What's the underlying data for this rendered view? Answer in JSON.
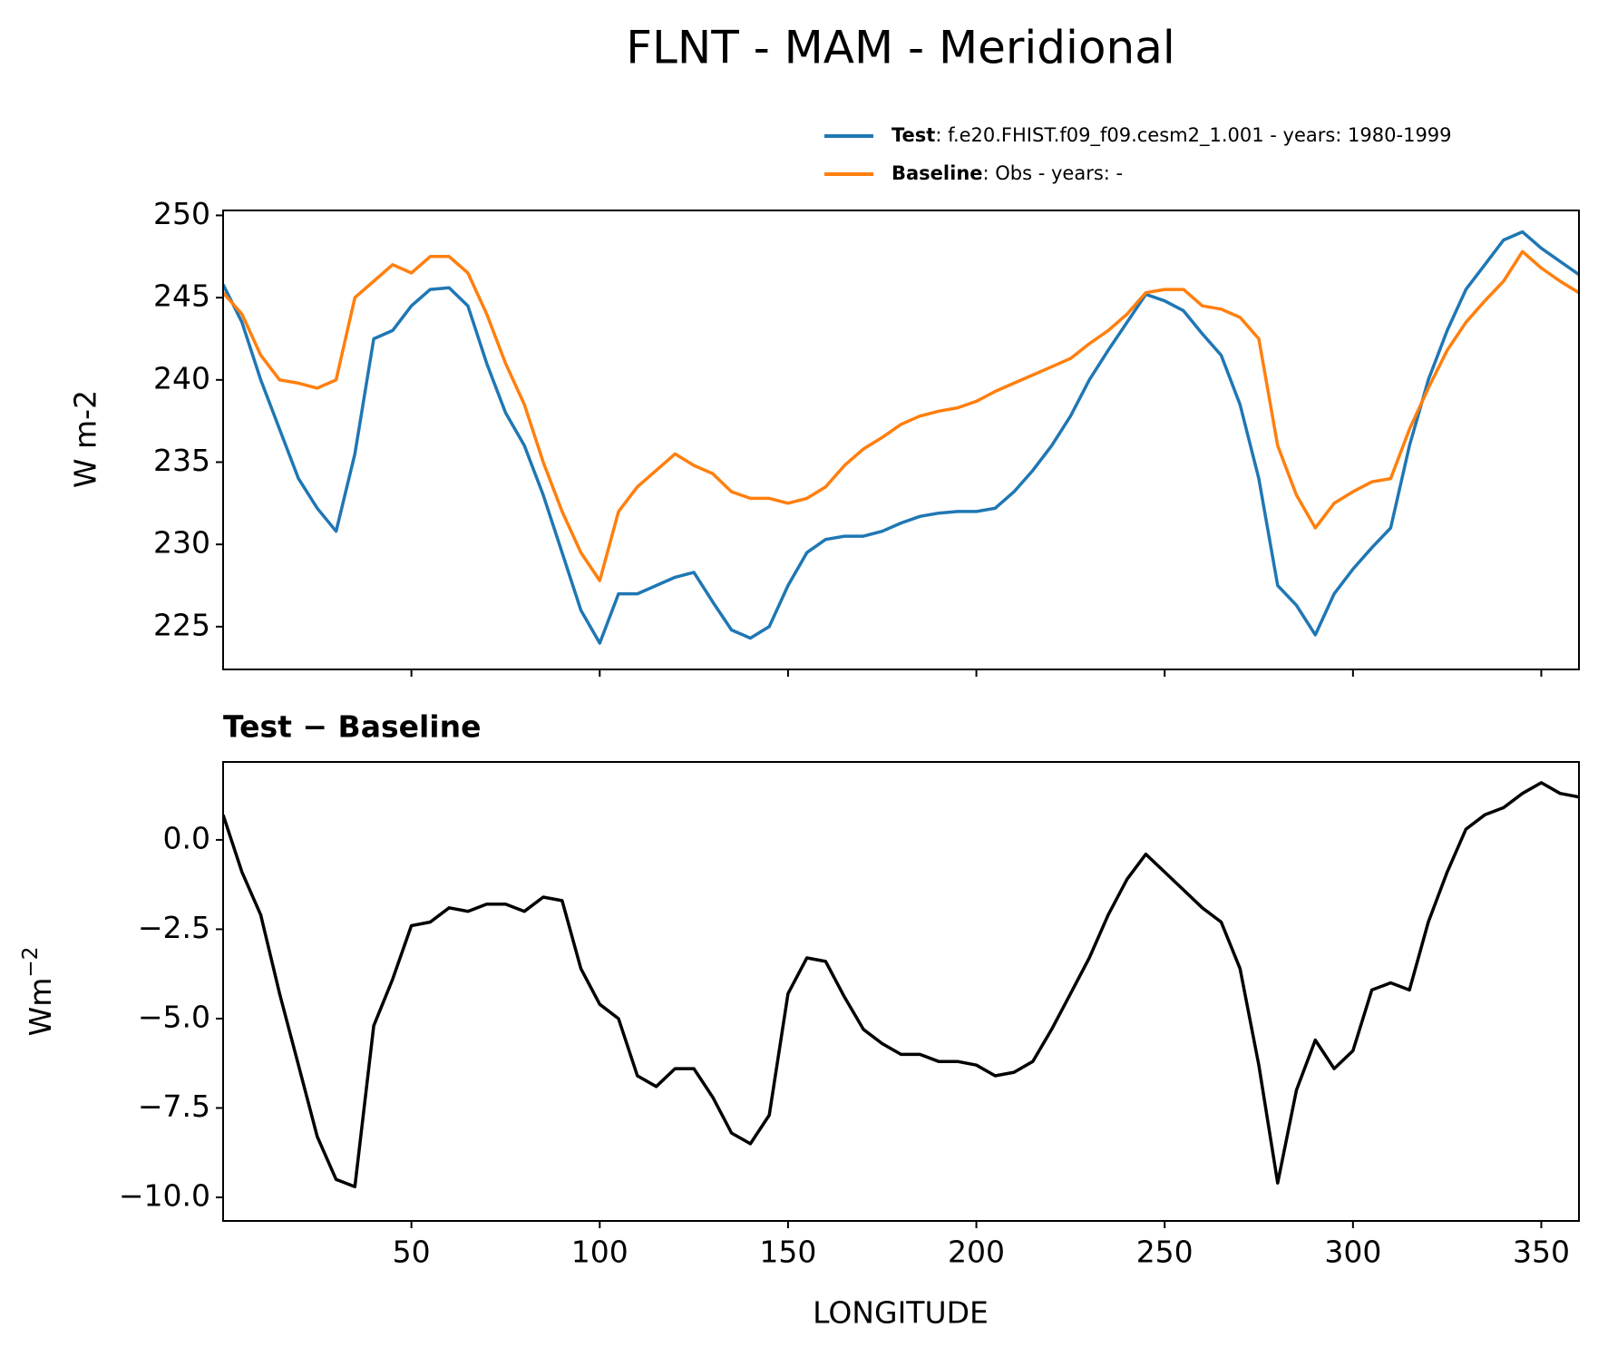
{
  "chart_data": [
    {
      "type": "line",
      "title": "FLNT - MAM - Meridional",
      "ylabel": "W m-2",
      "x": [
        0,
        5,
        10,
        15,
        20,
        25,
        30,
        35,
        40,
        45,
        50,
        55,
        60,
        65,
        70,
        75,
        80,
        85,
        90,
        95,
        100,
        105,
        110,
        115,
        120,
        125,
        130,
        135,
        140,
        145,
        150,
        155,
        160,
        165,
        170,
        175,
        180,
        185,
        190,
        195,
        200,
        205,
        210,
        215,
        220,
        225,
        230,
        235,
        240,
        245,
        250,
        255,
        260,
        265,
        270,
        275,
        280,
        285,
        290,
        295,
        300,
        305,
        310,
        315,
        320,
        325,
        330,
        335,
        340,
        345,
        350,
        355,
        360
      ],
      "series": [
        {
          "name": "Test",
          "description": ": f.e20.FHIST.f09_f09.cesm2_1.001 - years: 1980-1999",
          "color": "#1f77b4",
          "values": [
            245.8,
            243.5,
            240,
            237,
            234,
            232.2,
            230.8,
            235.5,
            242.5,
            243,
            244.5,
            245.5,
            245.6,
            244.5,
            241,
            238,
            236,
            233,
            229.5,
            226,
            224,
            227,
            227,
            227.5,
            228,
            228.3,
            226.5,
            224.8,
            224.3,
            225,
            227.5,
            229.5,
            230.3,
            230.5,
            230.5,
            230.8,
            231.3,
            231.7,
            231.9,
            232,
            232,
            232.2,
            233.2,
            234.5,
            236,
            237.8,
            240,
            241.8,
            243.5,
            245.2,
            244.8,
            244.2,
            242.8,
            241.5,
            238.5,
            234,
            227.5,
            226.3,
            224.5,
            227,
            228.5,
            229.8,
            231,
            236,
            240,
            243,
            245.5,
            247,
            248.5,
            249,
            248,
            247.2,
            246.4
          ]
        },
        {
          "name": "Baseline",
          "description": ": Obs - years: -",
          "color": "#ff7f0e",
          "values": [
            245.3,
            244,
            241.5,
            240,
            239.8,
            239.5,
            240,
            245,
            246,
            247,
            246.5,
            247.5,
            247.5,
            246.5,
            244,
            241,
            238.5,
            235,
            232,
            229.5,
            227.8,
            232,
            233.5,
            234.5,
            235.5,
            234.8,
            234.3,
            233.2,
            232.8,
            232.8,
            232.5,
            232.8,
            233.5,
            234.8,
            235.8,
            236.5,
            237.3,
            237.8,
            238.1,
            238.3,
            238.7,
            239.3,
            239.8,
            240.3,
            240.8,
            241.3,
            242.2,
            243,
            244,
            245.3,
            245.5,
            245.5,
            244.5,
            244.3,
            243.8,
            242.5,
            236,
            233,
            231,
            232.5,
            233.2,
            233.8,
            234,
            237,
            239.5,
            241.8,
            243.5,
            244.8,
            246,
            247.8,
            246.8,
            246,
            245.3
          ]
        }
      ],
      "xlim": [
        0,
        360
      ],
      "xticks": [
        50,
        100,
        150,
        200,
        250,
        300,
        350
      ],
      "show_xtick_labels": false,
      "ylim": [
        222.4,
        250.3
      ],
      "yticks": [
        225,
        230,
        235,
        240,
        245,
        250
      ],
      "grid": false,
      "legend": "upper right"
    },
    {
      "type": "line",
      "title": "Test − Baseline",
      "ylabel": "Wm",
      "ylabel_superscript": "−2",
      "xlabel": "LONGITUDE",
      "x": [
        0,
        5,
        10,
        15,
        20,
        25,
        30,
        35,
        40,
        45,
        50,
        55,
        60,
        65,
        70,
        75,
        80,
        85,
        90,
        95,
        100,
        105,
        110,
        115,
        120,
        125,
        130,
        135,
        140,
        145,
        150,
        155,
        160,
        165,
        170,
        175,
        180,
        185,
        190,
        195,
        200,
        205,
        210,
        215,
        220,
        225,
        230,
        235,
        240,
        245,
        250,
        255,
        260,
        265,
        270,
        275,
        280,
        285,
        290,
        295,
        300,
        305,
        310,
        315,
        320,
        325,
        330,
        335,
        340,
        345,
        350,
        355,
        360
      ],
      "series": [
        {
          "color": "#000000",
          "values": [
            0.7,
            -0.9,
            -2.1,
            -4.3,
            -6.3,
            -8.3,
            -9.5,
            -9.7,
            -5.2,
            -3.9,
            -2.4,
            -2.3,
            -1.9,
            -2,
            -1.8,
            -1.8,
            -2,
            -1.6,
            -1.7,
            -3.6,
            -4.6,
            -5,
            -6.6,
            -6.9,
            -6.4,
            -6.4,
            -7.2,
            -8.2,
            -8.5,
            -7.7,
            -4.3,
            -3.3,
            -3.4,
            -4.4,
            -5.3,
            -5.7,
            -6,
            -6,
            -6.2,
            -6.2,
            -6.3,
            -6.6,
            -6.5,
            -6.2,
            -5.3,
            -4.3,
            -3.3,
            -2.1,
            -1.1,
            -0.4,
            -0.9,
            -1.4,
            -1.9,
            -2.3,
            -3.6,
            -6.3,
            -9.6,
            -7,
            -5.6,
            -6.4,
            -5.9,
            -4.2,
            -4,
            -4.2,
            -2.3,
            -0.9,
            0.3,
            0.7,
            0.9,
            1.3,
            1.6,
            1.3,
            1.2
          ]
        }
      ],
      "xlim": [
        0,
        360
      ],
      "xticks": [
        50,
        100,
        150,
        200,
        250,
        300,
        350
      ],
      "show_xtick_labels": true,
      "ylim": [
        -10.66,
        2.18
      ],
      "yticks": [
        {
          "value": -10,
          "label": "−10.0"
        },
        {
          "value": -7.5,
          "label": "−7.5"
        },
        {
          "value": -5,
          "label": "−5.0"
        },
        {
          "value": -2.5,
          "label": "−2.5"
        },
        {
          "value": 0,
          "label": "0.0"
        }
      ],
      "grid": false
    }
  ]
}
